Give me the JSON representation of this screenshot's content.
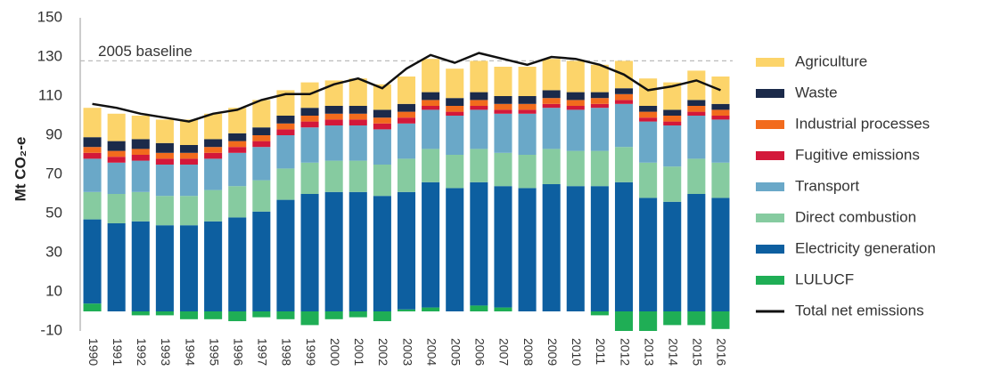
{
  "chart_data": {
    "type": "bar",
    "stacked": true,
    "y_label": "Mt CO₂-e",
    "baseline": {
      "label": "2005 baseline",
      "value": 128
    },
    "categories": [
      "1990",
      "1991",
      "1992",
      "1993",
      "1994",
      "1995",
      "1996",
      "1997",
      "1998",
      "1999",
      "2000",
      "2001",
      "2002",
      "2003",
      "2004",
      "2005",
      "2006",
      "2007",
      "2008",
      "2009",
      "2010",
      "2011",
      "2012",
      "2013",
      "2014",
      "2015",
      "2016"
    ],
    "ylim": [
      -10,
      150
    ],
    "yticks": [
      -10,
      10,
      30,
      50,
      70,
      90,
      110,
      130,
      150
    ],
    "series": [
      {
        "name": "Agriculture",
        "color": "#fcd46a",
        "values": [
          15,
          14,
          12,
          12,
          13,
          13,
          13,
          14,
          13,
          13,
          13,
          14,
          13,
          14,
          17,
          15,
          16,
          15,
          15,
          16,
          16,
          14,
          14,
          14,
          14,
          15,
          14
        ]
      },
      {
        "name": "Waste",
        "color": "#1b2a4a",
        "values": [
          5,
          5,
          5,
          5,
          4,
          4,
          4,
          4,
          4,
          4,
          4,
          4,
          4,
          4,
          4,
          4,
          4,
          4,
          4,
          4,
          4,
          3,
          3,
          3,
          3,
          3,
          3
        ]
      },
      {
        "name": "Industrial processes",
        "color": "#f26b1d",
        "values": [
          3,
          3,
          3,
          3,
          3,
          3,
          3,
          3,
          3,
          3,
          3,
          3,
          3,
          3,
          3,
          3,
          3,
          3,
          3,
          3,
          3,
          3,
          3,
          3,
          3,
          3,
          3
        ]
      },
      {
        "name": "Fugitive emissions",
        "color": "#d3183a",
        "values": [
          3,
          3,
          3,
          3,
          3,
          3,
          3,
          3,
          3,
          3,
          3,
          3,
          3,
          3,
          2,
          2,
          2,
          2,
          2,
          2,
          2,
          2,
          2,
          2,
          2,
          2,
          2
        ]
      },
      {
        "name": "Transport",
        "color": "#6aa8c8",
        "values": [
          17,
          16,
          16,
          16,
          16,
          16,
          17,
          17,
          17,
          18,
          18,
          18,
          18,
          18,
          20,
          20,
          20,
          20,
          21,
          21,
          21,
          22,
          22,
          21,
          21,
          22,
          22
        ]
      },
      {
        "name": "Direct combustion",
        "color": "#86cba0",
        "values": [
          14,
          15,
          15,
          15,
          15,
          16,
          16,
          16,
          16,
          16,
          16,
          16,
          16,
          17,
          17,
          17,
          17,
          17,
          17,
          18,
          18,
          18,
          18,
          18,
          18,
          18,
          18
        ]
      },
      {
        "name": "Electricity generation",
        "color": "#0d5fa0",
        "values": [
          43,
          45,
          46,
          44,
          44,
          46,
          48,
          51,
          57,
          60,
          61,
          61,
          59,
          60,
          64,
          63,
          63,
          62,
          63,
          65,
          64,
          64,
          66,
          58,
          56,
          60,
          58
        ]
      },
      {
        "name": "LULUCF",
        "color": "#1fae55",
        "values": [
          4,
          0,
          -2,
          -2,
          -4,
          -4,
          -5,
          -3,
          -4,
          -7,
          -4,
          -3,
          -5,
          1,
          2,
          0,
          3,
          2,
          0,
          0,
          0,
          -2,
          -10,
          -10,
          -7,
          -7,
          -9
        ]
      },
      {
        "name": "Total net emissions",
        "type": "line",
        "color": "#111111",
        "values": [
          106,
          104,
          101,
          99,
          97,
          101,
          103,
          108,
          111,
          111,
          116,
          119,
          114,
          124,
          131,
          127,
          132,
          129,
          126,
          130,
          129,
          126,
          121,
          113,
          115,
          118,
          113
        ]
      }
    ]
  }
}
